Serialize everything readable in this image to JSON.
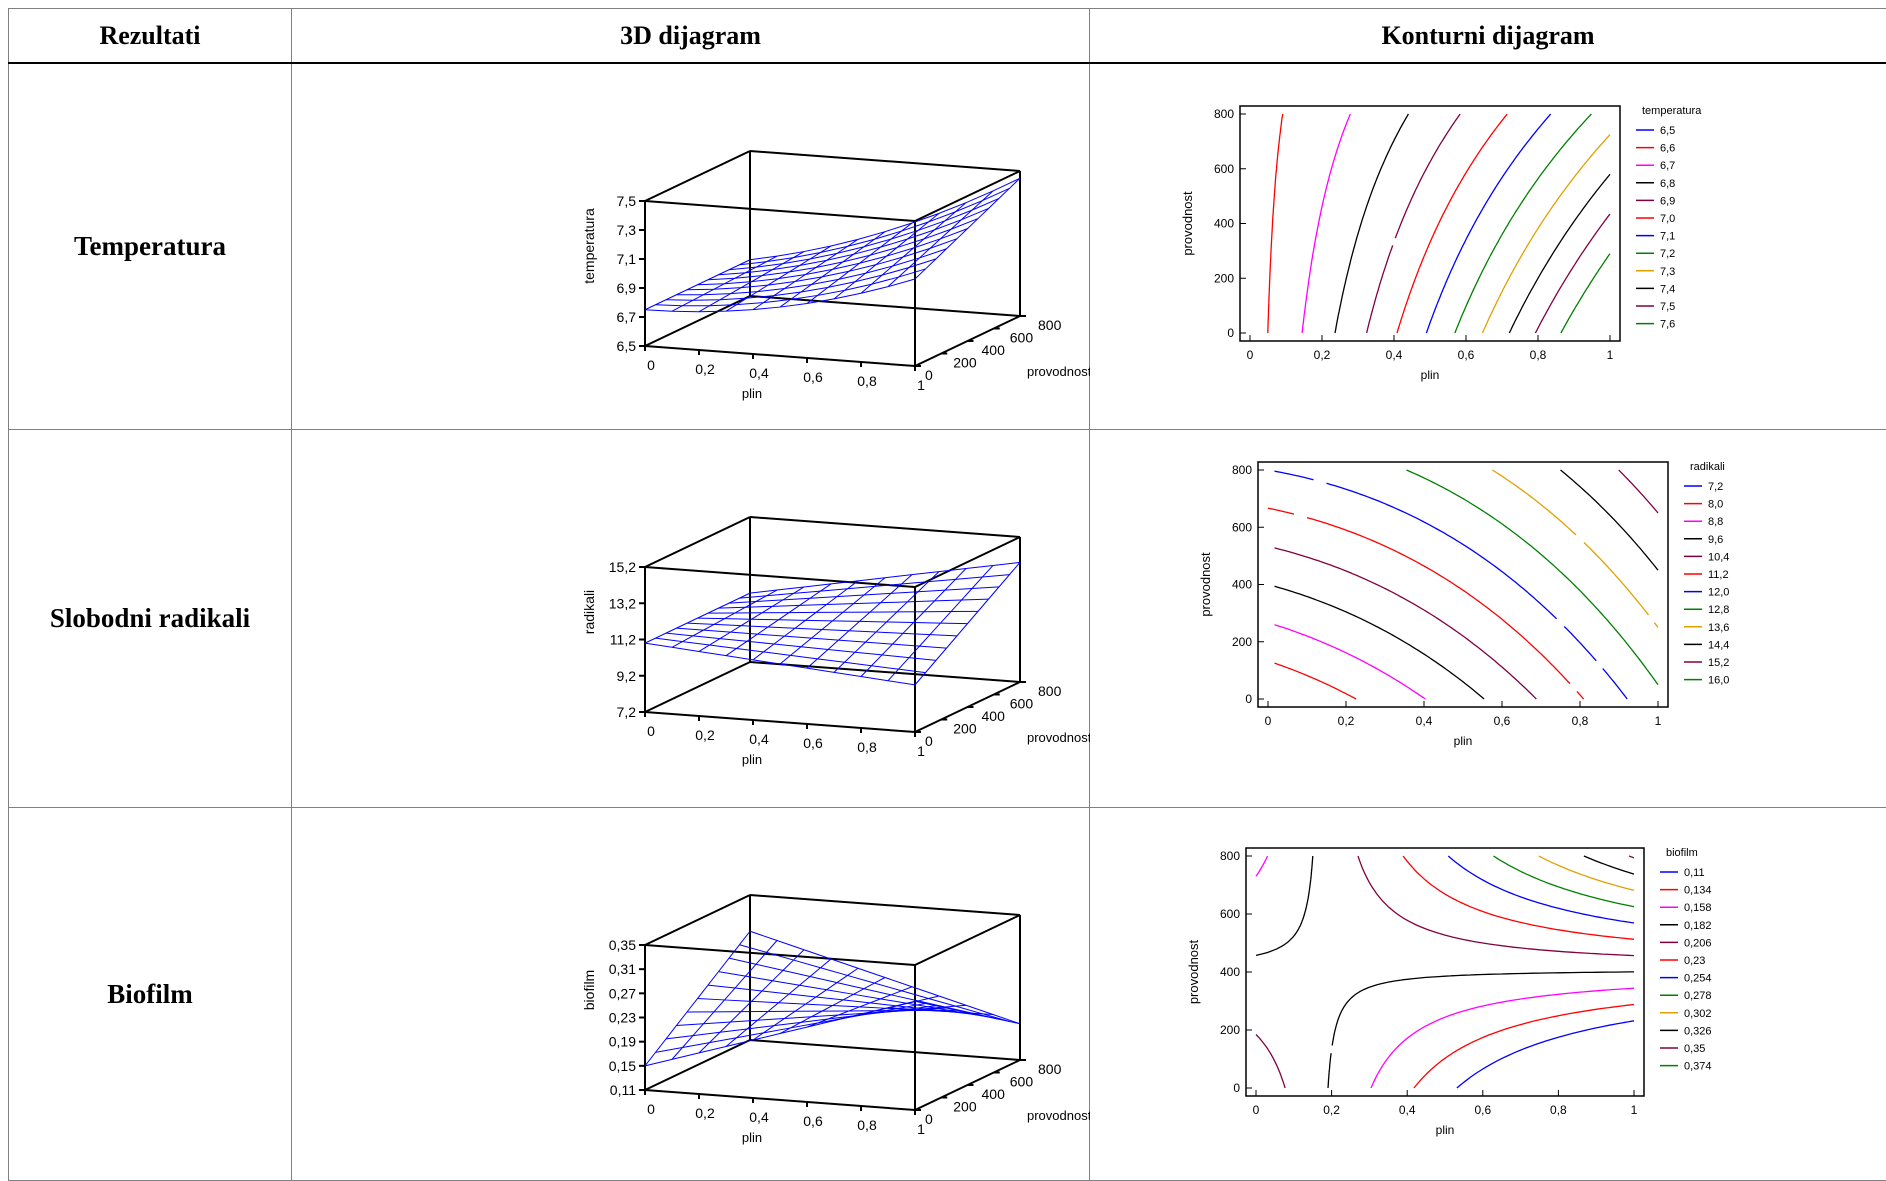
{
  "headers": [
    "Rezultati",
    "3D dijagram",
    "Konturni dijagram"
  ],
  "rows": [
    {
      "label": "Temperatura",
      "plot3d": {
        "zlabel": "temperatura",
        "zticks": [
          "7,5",
          "7,3",
          "7,1",
          "6,9",
          "6,7",
          "6,5"
        ],
        "xlabel": "plin",
        "xticks": [
          "0",
          "0,2",
          "0,4",
          "0,6",
          "0,8",
          "1"
        ],
        "ylabel": "provodnost",
        "yticks": [
          "0",
          "200",
          "400",
          "600",
          "800"
        ]
      },
      "contour": {
        "ylabel": "provodnost",
        "yticks": [
          "800",
          "600",
          "400",
          "200",
          "0"
        ],
        "xlabel": "plin",
        "xticks": [
          "0",
          "0,2",
          "0,4",
          "0,6",
          "0,8",
          "1"
        ],
        "legend_title": "temperatura",
        "legend": [
          {
            "label": "6,5",
            "color": "#0000ff"
          },
          {
            "label": "6,6",
            "color": "#ff0000"
          },
          {
            "label": "6,7",
            "color": "#ff00ff"
          },
          {
            "label": "6,8",
            "color": "#000000"
          },
          {
            "label": "6,9",
            "color": "#800040"
          },
          {
            "label": "7,0",
            "color": "#ff0000"
          },
          {
            "label": "7,1",
            "color": "#0000ff"
          },
          {
            "label": "7,2",
            "color": "#008000"
          },
          {
            "label": "7,3",
            "color": "#e0a000"
          },
          {
            "label": "7,4",
            "color": "#000000"
          },
          {
            "label": "7,5",
            "color": "#800040"
          },
          {
            "label": "7,6",
            "color": "#008000"
          }
        ]
      }
    },
    {
      "label": "Slobodni radikali",
      "plot3d": {
        "zlabel": "radikali",
        "zticks": [
          "15,2",
          "13,2",
          "11,2",
          "9,2",
          "7,2"
        ],
        "xlabel": "plin",
        "xticks": [
          "0",
          "0,2",
          "0,4",
          "0,6",
          "0,8",
          "1"
        ],
        "ylabel": "provodnost",
        "yticks": [
          "0",
          "200",
          "400",
          "600",
          "800"
        ]
      },
      "contour": {
        "ylabel": "provodnost",
        "yticks": [
          "800",
          "600",
          "400",
          "200",
          "0"
        ],
        "xlabel": "plin",
        "xticks": [
          "0",
          "0,2",
          "0,4",
          "0,6",
          "0,8",
          "1"
        ],
        "legend_title": "radikali",
        "legend": [
          {
            "label": "7,2",
            "color": "#0000ff"
          },
          {
            "label": "8,0",
            "color": "#ff0000"
          },
          {
            "label": "8,8",
            "color": "#ff00ff"
          },
          {
            "label": "9,6",
            "color": "#000000"
          },
          {
            "label": "10,4",
            "color": "#800040"
          },
          {
            "label": "11,2",
            "color": "#ff0000"
          },
          {
            "label": "12,0",
            "color": "#0000ff"
          },
          {
            "label": "12,8",
            "color": "#008000"
          },
          {
            "label": "13,6",
            "color": "#e0a000"
          },
          {
            "label": "14,4",
            "color": "#000000"
          },
          {
            "label": "15,2",
            "color": "#800040"
          },
          {
            "label": "16,0",
            "color": "#008000"
          }
        ]
      }
    },
    {
      "label": "Biofilm",
      "plot3d": {
        "zlabel": "biofilm",
        "zticks": [
          "0,35",
          "0,31",
          "0,27",
          "0,23",
          "0,19",
          "0,15",
          "0,11"
        ],
        "xlabel": "plin",
        "xticks": [
          "0",
          "0,2",
          "0,4",
          "0,6",
          "0,8",
          "1"
        ],
        "ylabel": "provodnost",
        "yticks": [
          "0",
          "200",
          "400",
          "600",
          "800"
        ]
      },
      "contour": {
        "ylabel": "provodnost",
        "yticks": [
          "800",
          "600",
          "400",
          "200",
          "0"
        ],
        "xlabel": "plin",
        "xticks": [
          "0",
          "0,2",
          "0,4",
          "0,6",
          "0,8",
          "1"
        ],
        "legend_title": "biofilm",
        "legend": [
          {
            "label": "0,11",
            "color": "#0000ff"
          },
          {
            "label": "0,134",
            "color": "#ff0000"
          },
          {
            "label": "0,158",
            "color": "#ff00ff"
          },
          {
            "label": "0,182",
            "color": "#000000"
          },
          {
            "label": "0,206",
            "color": "#800040"
          },
          {
            "label": "0,23",
            "color": "#ff0000"
          },
          {
            "label": "0,254",
            "color": "#0000ff"
          },
          {
            "label": "0,278",
            "color": "#008000"
          },
          {
            "label": "0,302",
            "color": "#e0a000"
          },
          {
            "label": "0,326",
            "color": "#000000"
          },
          {
            "label": "0,35",
            "color": "#800040"
          },
          {
            "label": "0,374",
            "color": "#008000"
          }
        ]
      }
    }
  ],
  "chart_data": [
    {
      "type": "surface",
      "title": "",
      "xlabel": "plin",
      "ylabel": "provodnost",
      "zlabel": "temperatura",
      "xlim": [
        0,
        1
      ],
      "ylim": [
        0,
        800
      ],
      "zlim": [
        6.5,
        7.5
      ]
    },
    {
      "type": "contour",
      "xlabel": "plin",
      "ylabel": "provodnost",
      "xlim": [
        0,
        1
      ],
      "ylim": [
        0,
        800
      ],
      "legend_title": "temperatura",
      "levels": [
        6.5,
        6.6,
        6.7,
        6.8,
        6.9,
        7.0,
        7.1,
        7.2,
        7.3,
        7.4,
        7.5,
        7.6
      ]
    },
    {
      "type": "surface",
      "title": "",
      "xlabel": "plin",
      "ylabel": "provodnost",
      "zlabel": "radikali",
      "xlim": [
        0,
        1
      ],
      "ylim": [
        0,
        800
      ],
      "zlim": [
        7.2,
        15.2
      ]
    },
    {
      "type": "contour",
      "xlabel": "plin",
      "ylabel": "provodnost",
      "xlim": [
        0,
        1
      ],
      "ylim": [
        0,
        800
      ],
      "legend_title": "radikali",
      "levels": [
        7.2,
        8.0,
        8.8,
        9.6,
        10.4,
        11.2,
        12.0,
        12.8,
        13.6,
        14.4,
        15.2,
        16.0
      ]
    },
    {
      "type": "surface",
      "title": "",
      "xlabel": "plin",
      "ylabel": "provodnost",
      "zlabel": "biofilm",
      "xlim": [
        0,
        1
      ],
      "ylim": [
        0,
        800
      ],
      "zlim": [
        0.11,
        0.35
      ]
    },
    {
      "type": "contour",
      "xlabel": "plin",
      "ylabel": "provodnost",
      "xlim": [
        0,
        1
      ],
      "ylim": [
        0,
        800
      ],
      "legend_title": "biofilm",
      "levels": [
        0.11,
        0.134,
        0.158,
        0.182,
        0.206,
        0.23,
        0.254,
        0.278,
        0.302,
        0.326,
        0.35,
        0.374
      ]
    }
  ]
}
